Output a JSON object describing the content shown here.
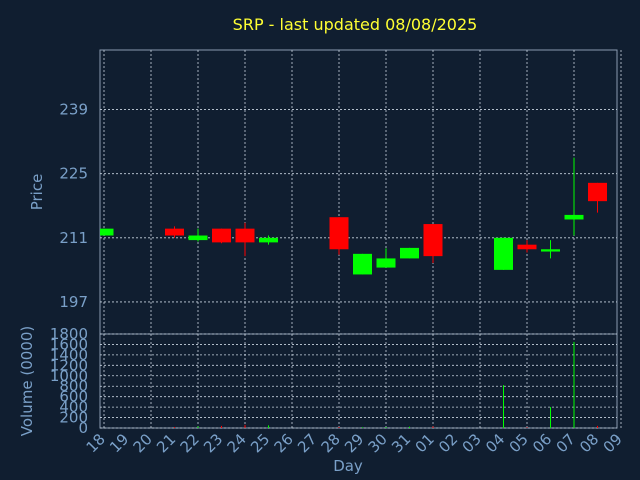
{
  "chart_data": {
    "type": "candlestick",
    "title": "SRP - last updated 08/08/2025",
    "price_panel": {
      "ylabel": "Price",
      "yticks": [
        197,
        211,
        225,
        239
      ],
      "ylim": [
        190,
        252
      ]
    },
    "volume_panel": {
      "ylabel": "Volume (0000)",
      "yticks": [
        0,
        200,
        400,
        600,
        800,
        1000,
        1200,
        1400,
        1600,
        1800
      ],
      "ylim": [
        0,
        1800
      ]
    },
    "xlabel": "Day",
    "x_ticks": [
      "18",
      "19",
      "20",
      "21",
      "22",
      "23",
      "24",
      "25",
      "26",
      "27",
      "28",
      "29",
      "30",
      "31",
      "01",
      "02",
      "03",
      "04",
      "05",
      "06",
      "07",
      "08",
      "09"
    ],
    "candles": [
      {
        "day": "18",
        "open": 211.5,
        "close": 213.0,
        "high": 213.0,
        "low": 211.5,
        "volume": 0
      },
      {
        "day": "21",
        "open": 213.0,
        "close": 211.5,
        "high": 213.5,
        "low": 211.0,
        "volume": 20
      },
      {
        "day": "22",
        "open": 210.5,
        "close": 211.5,
        "high": 213.0,
        "low": 210.2,
        "volume": 30
      },
      {
        "day": "23",
        "open": 213.0,
        "close": 210.0,
        "high": 213.0,
        "low": 209.8,
        "volume": 40
      },
      {
        "day": "24",
        "open": 213.0,
        "close": 210.0,
        "high": 214.3,
        "low": 207.0,
        "volume": 60
      },
      {
        "day": "25",
        "open": 210.0,
        "close": 211.0,
        "high": 211.5,
        "low": 209.5,
        "volume": 50
      },
      {
        "day": "28",
        "open": 215.5,
        "close": 208.5,
        "high": 215.5,
        "low": 207.3,
        "volume": 20
      },
      {
        "day": "29",
        "open": 203.0,
        "close": 207.5,
        "high": 207.5,
        "low": 203.0,
        "volume": 15
      },
      {
        "day": "30",
        "open": 204.5,
        "close": 206.5,
        "high": 208.7,
        "low": 204.5,
        "volume": 20
      },
      {
        "day": "31",
        "open": 206.5,
        "close": 208.8,
        "high": 208.8,
        "low": 206.5,
        "volume": 25
      },
      {
        "day": "01",
        "open": 214.0,
        "close": 207.0,
        "high": 214.0,
        "low": 205.5,
        "volume": 30
      },
      {
        "day": "04",
        "open": 204.0,
        "close": 211.0,
        "high": 211.0,
        "low": 204.0,
        "volume": 820
      },
      {
        "day": "05",
        "open": 209.5,
        "close": 208.5,
        "high": 210.5,
        "low": 207.8,
        "volume": 15
      },
      {
        "day": "06",
        "open": 208.0,
        "close": 208.5,
        "high": 210.5,
        "low": 206.5,
        "volume": 400
      },
      {
        "day": "07",
        "open": 215.0,
        "close": 216.0,
        "high": 228.5,
        "low": 211.5,
        "volume": 1650
      },
      {
        "day": "08",
        "open": 223.0,
        "close": 219.0,
        "high": 223.0,
        "low": 216.5,
        "volume": 40
      }
    ],
    "colors": {
      "up": "#00ff00",
      "down": "#ff0000",
      "background": "#101e30",
      "title": "#ffff33",
      "axis_text": "#7aa0c8"
    },
    "grid": true
  }
}
